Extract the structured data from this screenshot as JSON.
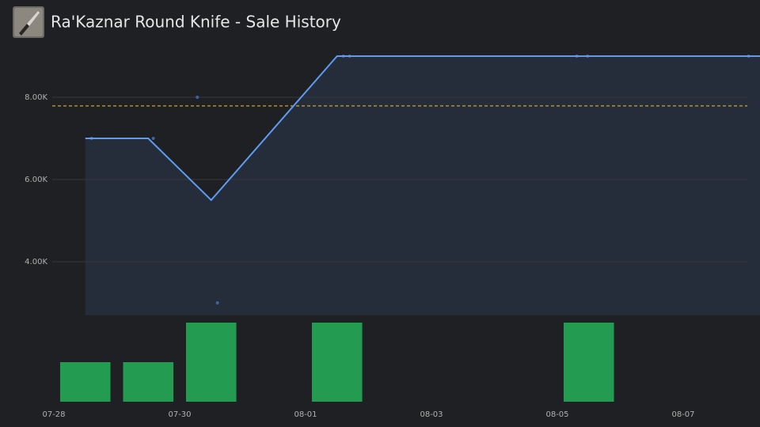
{
  "chart_data": {
    "type": "line",
    "title": "Ra'Kaznar Round Knife - Sale History",
    "xlim": [
      0,
      11.22
    ],
    "xticks": [
      {
        "value": 0,
        "label": "07-28"
      },
      {
        "value": 2,
        "label": "07-30"
      },
      {
        "value": 4,
        "label": "08-01"
      },
      {
        "value": 6,
        "label": "08-03"
      },
      {
        "value": 8,
        "label": "08-05"
      },
      {
        "value": 10,
        "label": "08-07"
      }
    ],
    "ylim": [
      2700,
      9300
    ],
    "yticks": [
      {
        "value": 4000,
        "label": "4.00K"
      },
      {
        "value": 6000,
        "label": "6.00K"
      },
      {
        "value": 8000,
        "label": "8.00K"
      }
    ],
    "y2lim": [
      0,
      2
    ],
    "grid": true,
    "series": [
      {
        "type": "line",
        "color": "#5d9cf2",
        "fill": "#262d3a",
        "x": [
          0.5,
          1.5,
          2.5,
          4.5,
          8.5,
          10.5,
          11.22
        ],
        "values": [
          7000,
          7000,
          5500,
          9000,
          9000,
          9000,
          9000
        ]
      },
      {
        "type": "scatter",
        "color": "#3e64a0",
        "x": [
          0.6,
          1.58,
          2.28,
          2.6,
          4.6,
          4.7,
          8.31,
          8.48,
          11.04
        ],
        "values": [
          7000,
          7000,
          8000,
          3000,
          9000,
          9000,
          9000,
          9000,
          9000
        ]
      },
      {
        "type": "bar",
        "axis": "y2",
        "color": "#239b50",
        "x": [
          0.5,
          1.5,
          2.5,
          4.5,
          8.5
        ],
        "values": [
          1,
          1,
          2,
          2,
          2
        ]
      }
    ],
    "reference_line": {
      "value": 7790,
      "color": "#e6b422"
    }
  }
}
